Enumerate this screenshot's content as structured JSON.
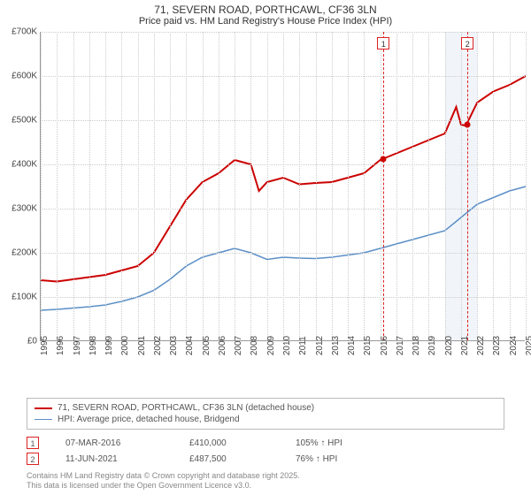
{
  "title_line1": "71, SEVERN ROAD, PORTHCAWL, CF36 3LN",
  "title_line2": "Price paid vs. HM Land Registry's House Price Index (HPI)",
  "chart": {
    "type": "line",
    "background_color": "#ffffff",
    "grid_color": "#cccccc",
    "axis_color": "#999999",
    "label_fontsize": 10,
    "title_fontsize": 12,
    "y": {
      "min": 0,
      "max": 700000,
      "step": 100000,
      "prefix": "£",
      "suffix": "K",
      "ticks": [
        "£0",
        "£100K",
        "£200K",
        "£300K",
        "£400K",
        "£500K",
        "£600K",
        "£700K"
      ]
    },
    "x": {
      "min": 1995,
      "max": 2025,
      "step": 1,
      "ticks": [
        1995,
        1996,
        1997,
        1998,
        1999,
        2000,
        2001,
        2002,
        2003,
        2004,
        2005,
        2006,
        2007,
        2008,
        2009,
        2010,
        2011,
        2012,
        2013,
        2014,
        2015,
        2016,
        2017,
        2018,
        2019,
        2020,
        2021,
        2022,
        2023,
        2024,
        2025
      ]
    },
    "shade": {
      "x_from": 2020,
      "x_to": 2022,
      "color": "#e8eef7",
      "opacity": 0.6
    },
    "series": [
      {
        "name": "71, SEVERN ROAD, PORTHCAWL, CF36 3LN (detached house)",
        "color": "#cc0000",
        "line_width": 2,
        "data": [
          [
            1995,
            138000
          ],
          [
            1996,
            135000
          ],
          [
            1997,
            140000
          ],
          [
            1998,
            145000
          ],
          [
            1999,
            150000
          ],
          [
            2000,
            160000
          ],
          [
            2001,
            170000
          ],
          [
            2002,
            200000
          ],
          [
            2003,
            260000
          ],
          [
            2004,
            320000
          ],
          [
            2005,
            360000
          ],
          [
            2006,
            380000
          ],
          [
            2007,
            410000
          ],
          [
            2008,
            400000
          ],
          [
            2008.5,
            340000
          ],
          [
            2009,
            360000
          ],
          [
            2010,
            370000
          ],
          [
            2011,
            355000
          ],
          [
            2012,
            358000
          ],
          [
            2013,
            360000
          ],
          [
            2014,
            370000
          ],
          [
            2015,
            380000
          ],
          [
            2016,
            410000
          ],
          [
            2017,
            425000
          ],
          [
            2018,
            440000
          ],
          [
            2019,
            455000
          ],
          [
            2020,
            470000
          ],
          [
            2020.7,
            530000
          ],
          [
            2021,
            490000
          ],
          [
            2021.3,
            487500
          ],
          [
            2022,
            540000
          ],
          [
            2023,
            565000
          ],
          [
            2024,
            580000
          ],
          [
            2025,
            600000
          ]
        ]
      },
      {
        "name": "HPI: Average price, detached house, Bridgend",
        "color": "#5b8fc7",
        "line_width": 1.5,
        "data": [
          [
            1995,
            70000
          ],
          [
            1996,
            72000
          ],
          [
            1997,
            75000
          ],
          [
            1998,
            78000
          ],
          [
            1999,
            82000
          ],
          [
            2000,
            90000
          ],
          [
            2001,
            100000
          ],
          [
            2002,
            115000
          ],
          [
            2003,
            140000
          ],
          [
            2004,
            170000
          ],
          [
            2005,
            190000
          ],
          [
            2006,
            200000
          ],
          [
            2007,
            210000
          ],
          [
            2008,
            200000
          ],
          [
            2009,
            185000
          ],
          [
            2010,
            190000
          ],
          [
            2011,
            188000
          ],
          [
            2012,
            187000
          ],
          [
            2013,
            190000
          ],
          [
            2014,
            195000
          ],
          [
            2015,
            200000
          ],
          [
            2016,
            210000
          ],
          [
            2017,
            220000
          ],
          [
            2018,
            230000
          ],
          [
            2019,
            240000
          ],
          [
            2020,
            250000
          ],
          [
            2021,
            280000
          ],
          [
            2022,
            310000
          ],
          [
            2023,
            325000
          ],
          [
            2024,
            340000
          ],
          [
            2025,
            350000
          ]
        ]
      }
    ],
    "markers": [
      {
        "id": "1",
        "x": 2016.2,
        "y": 410000
      },
      {
        "id": "2",
        "x": 2021.4,
        "y": 487500
      }
    ]
  },
  "legend": {
    "series0": "71, SEVERN ROAD, PORTHCAWL, CF36 3LN (detached house)",
    "series1": "HPI: Average price, detached house, Bridgend"
  },
  "transactions": [
    {
      "id": "1",
      "date": "07-MAR-2016",
      "price": "£410,000",
      "diff": "105% ↑ HPI"
    },
    {
      "id": "2",
      "date": "11-JUN-2021",
      "price": "£487,500",
      "diff": "76% ↑ HPI"
    }
  ],
  "footer_line1": "Contains HM Land Registry data © Crown copyright and database right 2025.",
  "footer_line2": "This data is licensed under the Open Government Licence v3.0."
}
